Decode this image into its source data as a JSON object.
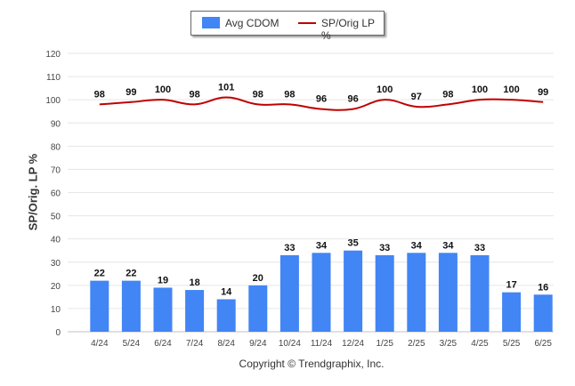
{
  "chart_data": {
    "type": "bar",
    "categories": [
      "4/24",
      "5/24",
      "6/24",
      "7/24",
      "8/24",
      "9/24",
      "10/24",
      "11/24",
      "12/24",
      "1/25",
      "2/25",
      "3/25",
      "4/25",
      "5/25",
      "6/25"
    ],
    "series": [
      {
        "name": "Avg CDOM",
        "type": "bar",
        "color": "#4285f4",
        "values": [
          22,
          22,
          19,
          18,
          14,
          20,
          33,
          34,
          35,
          33,
          34,
          34,
          33,
          17,
          16
        ]
      },
      {
        "name": "SP/Orig LP %",
        "type": "line",
        "color": "#c00000",
        "values": [
          98,
          99,
          100,
          98,
          101,
          98,
          98,
          96,
          96,
          100,
          97,
          98,
          100,
          100,
          99
        ]
      }
    ],
    "ylabel": "SP/Orig. LP %",
    "ylim": [
      0,
      120
    ],
    "yticks": [
      0,
      10,
      20,
      30,
      40,
      50,
      60,
      70,
      80,
      90,
      100,
      110,
      120
    ],
    "grid": true,
    "legend_position": "top-center"
  },
  "credit": "Copyright © Trendgraphix, Inc."
}
